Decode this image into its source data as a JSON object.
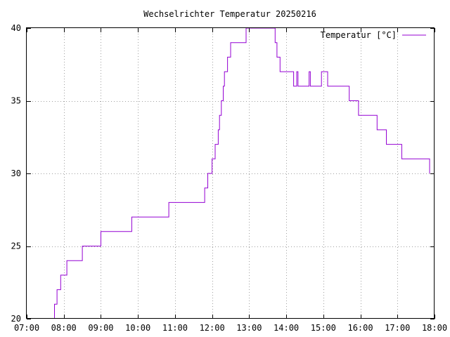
{
  "chart_data": {
    "type": "line",
    "title": "Wechselrichter Temperatur 20250216",
    "xlabel": "",
    "ylabel": "",
    "xlim": [
      "07:00",
      "18:00"
    ],
    "ylim": [
      20,
      40
    ],
    "x_ticks": [
      "07:00",
      "08:00",
      "09:00",
      "10:00",
      "11:00",
      "12:00",
      "13:00",
      "14:00",
      "15:00",
      "16:00",
      "17:00",
      "18:00"
    ],
    "y_ticks": [
      20,
      25,
      30,
      35,
      40
    ],
    "grid": true,
    "legend_position": "top-right",
    "series": [
      {
        "name": "Temperatur [°C]",
        "color": "#9400d3",
        "points": [
          [
            "07:42",
            20
          ],
          [
            "07:45",
            21
          ],
          [
            "07:49",
            22
          ],
          [
            "07:55",
            23
          ],
          [
            "08:05",
            24
          ],
          [
            "08:30",
            25
          ],
          [
            "09:00",
            26
          ],
          [
            "09:50",
            27
          ],
          [
            "10:50",
            28
          ],
          [
            "11:48",
            29
          ],
          [
            "11:53",
            30
          ],
          [
            "12:00",
            31
          ],
          [
            "12:05",
            32
          ],
          [
            "12:10",
            33
          ],
          [
            "12:12",
            34
          ],
          [
            "12:15",
            35
          ],
          [
            "12:18",
            36
          ],
          [
            "12:20",
            37
          ],
          [
            "12:25",
            38
          ],
          [
            "12:30",
            39
          ],
          [
            "12:35",
            39
          ],
          [
            "12:50",
            39
          ],
          [
            "12:55",
            40
          ],
          [
            "13:00",
            40
          ],
          [
            "13:40",
            40
          ],
          [
            "13:42",
            39
          ],
          [
            "13:45",
            38
          ],
          [
            "13:50",
            37
          ],
          [
            "14:10",
            37
          ],
          [
            "14:12",
            36
          ],
          [
            "14:15",
            36
          ],
          [
            "14:17",
            37
          ],
          [
            "14:19",
            36
          ],
          [
            "14:35",
            36
          ],
          [
            "14:37",
            37
          ],
          [
            "14:39",
            36
          ],
          [
            "14:55",
            36
          ],
          [
            "14:57",
            37
          ],
          [
            "15:05",
            37
          ],
          [
            "15:07",
            36
          ],
          [
            "15:40",
            36
          ],
          [
            "15:42",
            35
          ],
          [
            "15:55",
            35
          ],
          [
            "15:57",
            34
          ],
          [
            "16:25",
            34
          ],
          [
            "16:27",
            33
          ],
          [
            "16:40",
            33
          ],
          [
            "16:42",
            32
          ],
          [
            "17:05",
            32
          ],
          [
            "17:07",
            31
          ],
          [
            "17:50",
            31
          ],
          [
            "17:52",
            30
          ]
        ]
      }
    ]
  }
}
